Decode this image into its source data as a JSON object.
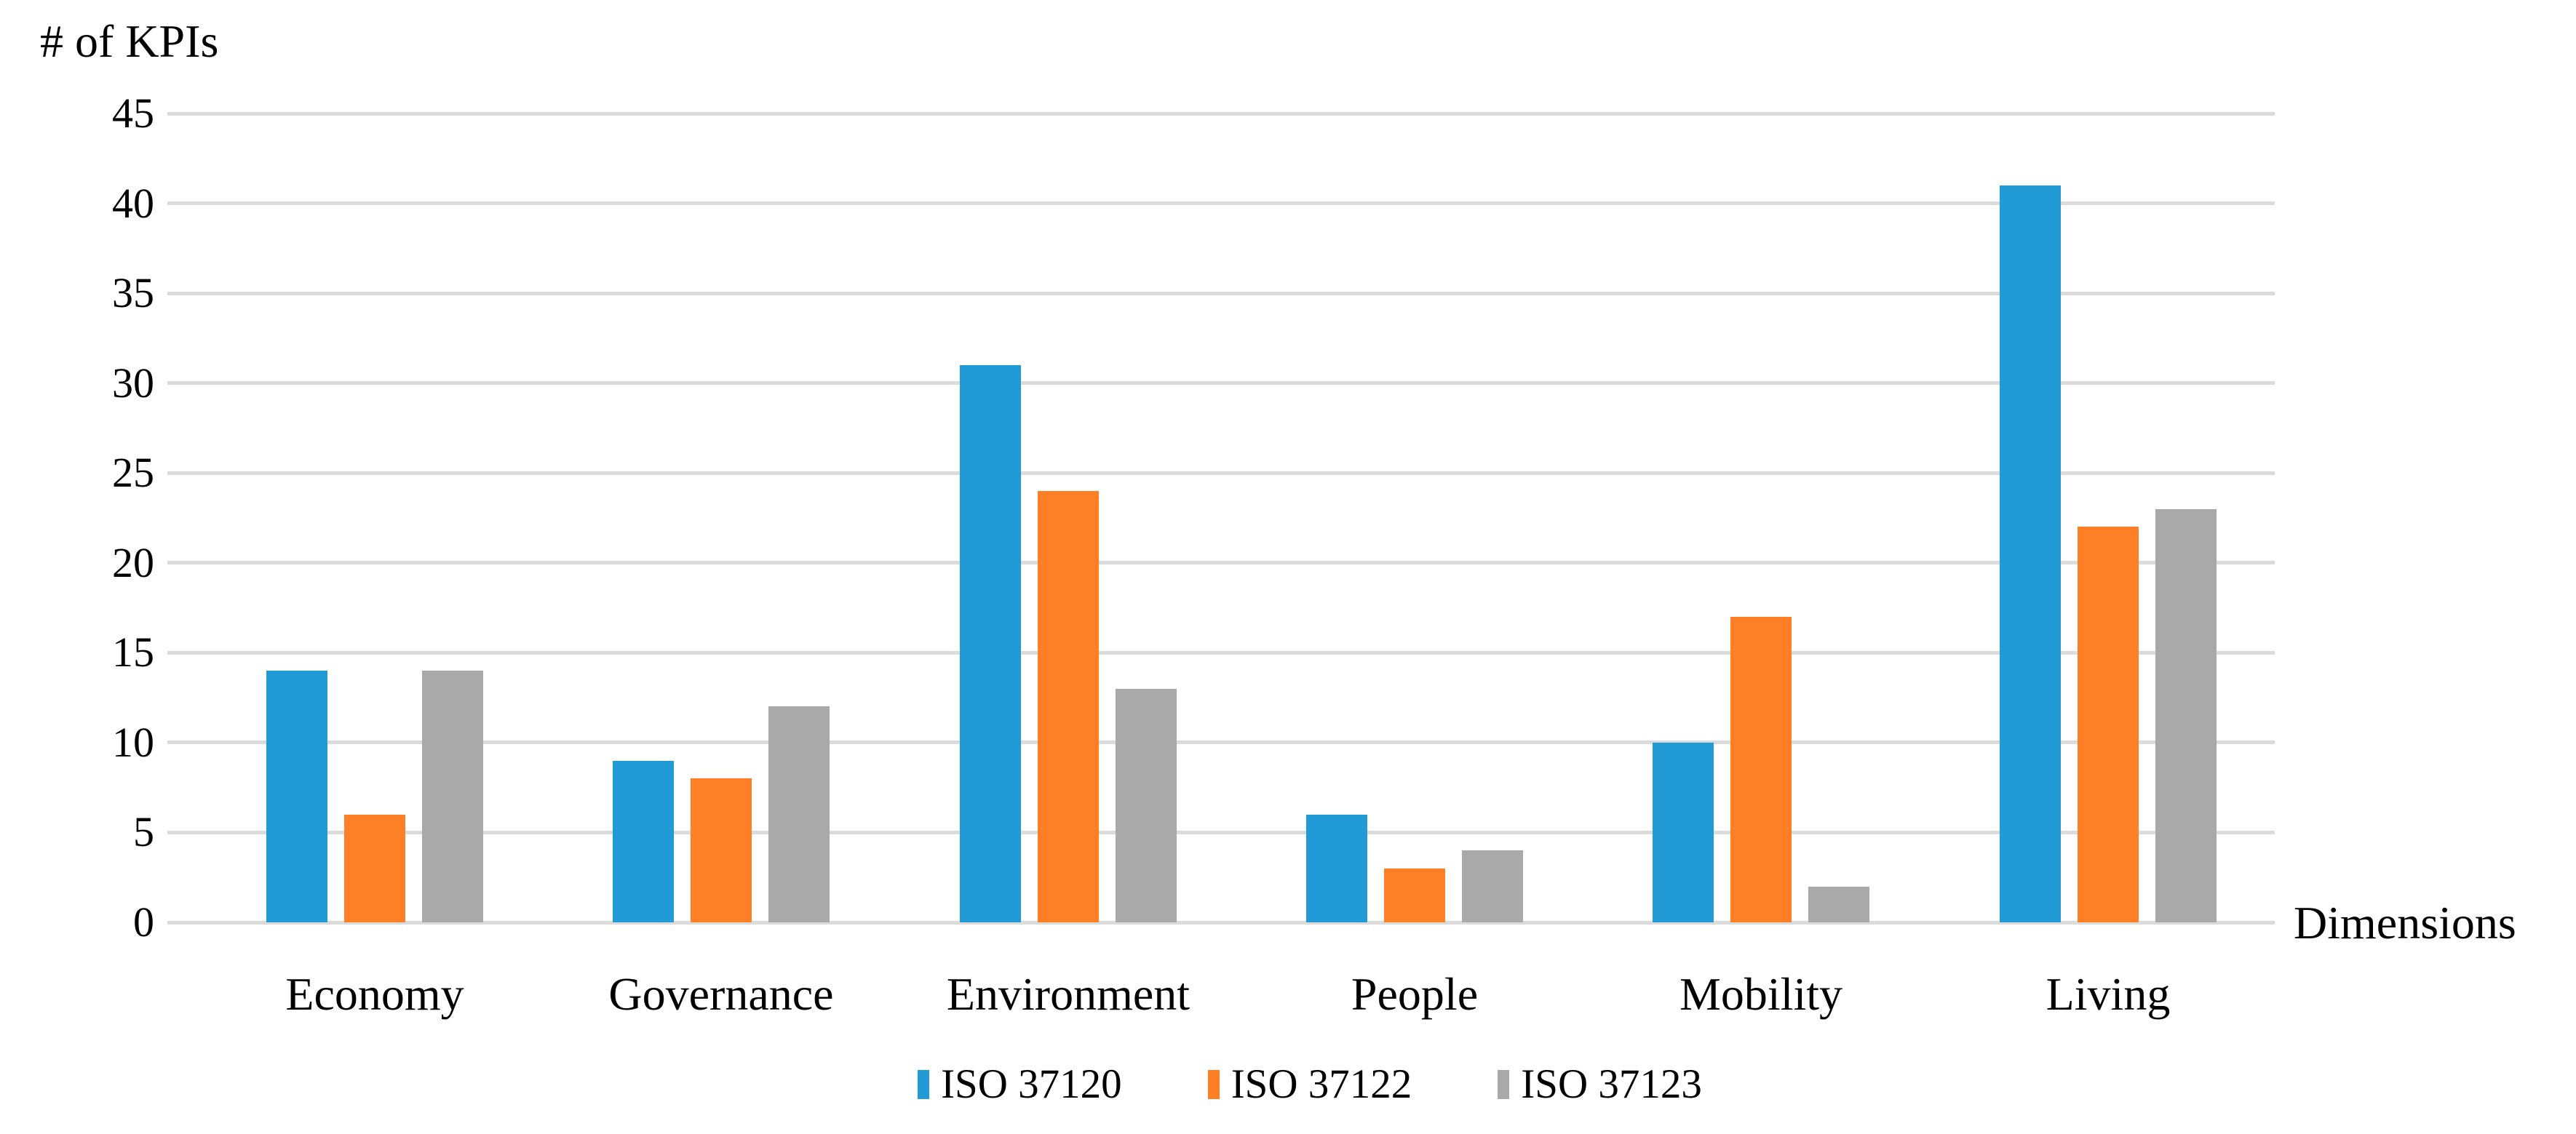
{
  "chart_data": {
    "type": "bar",
    "title": "",
    "ylabel": "# of KPIs",
    "xlabel": "Dimensions",
    "ylim": [
      0,
      45
    ],
    "ytick_step": 5,
    "yticks": [
      45,
      40,
      35,
      30,
      25,
      20,
      15,
      10,
      5,
      0
    ],
    "grid": true,
    "legend_position": "bottom-center",
    "categories": [
      "Economy",
      "Governance",
      "Environment",
      "People",
      "Mobility",
      "Living"
    ],
    "series": [
      {
        "name": "ISO 37120",
        "color": "#219AD6",
        "values": [
          14,
          9,
          31,
          6,
          10,
          41
        ]
      },
      {
        "name": "ISO 37122",
        "color": "#FF7F27",
        "values": [
          6,
          8,
          24,
          3,
          17,
          22
        ]
      },
      {
        "name": "ISO 37123",
        "color": "#A9A9A9",
        "values": [
          14,
          12,
          13,
          4,
          2,
          23
        ]
      }
    ]
  },
  "colors": {
    "gridline": "#dbdbdb",
    "text": "#000000",
    "background": "#ffffff"
  }
}
